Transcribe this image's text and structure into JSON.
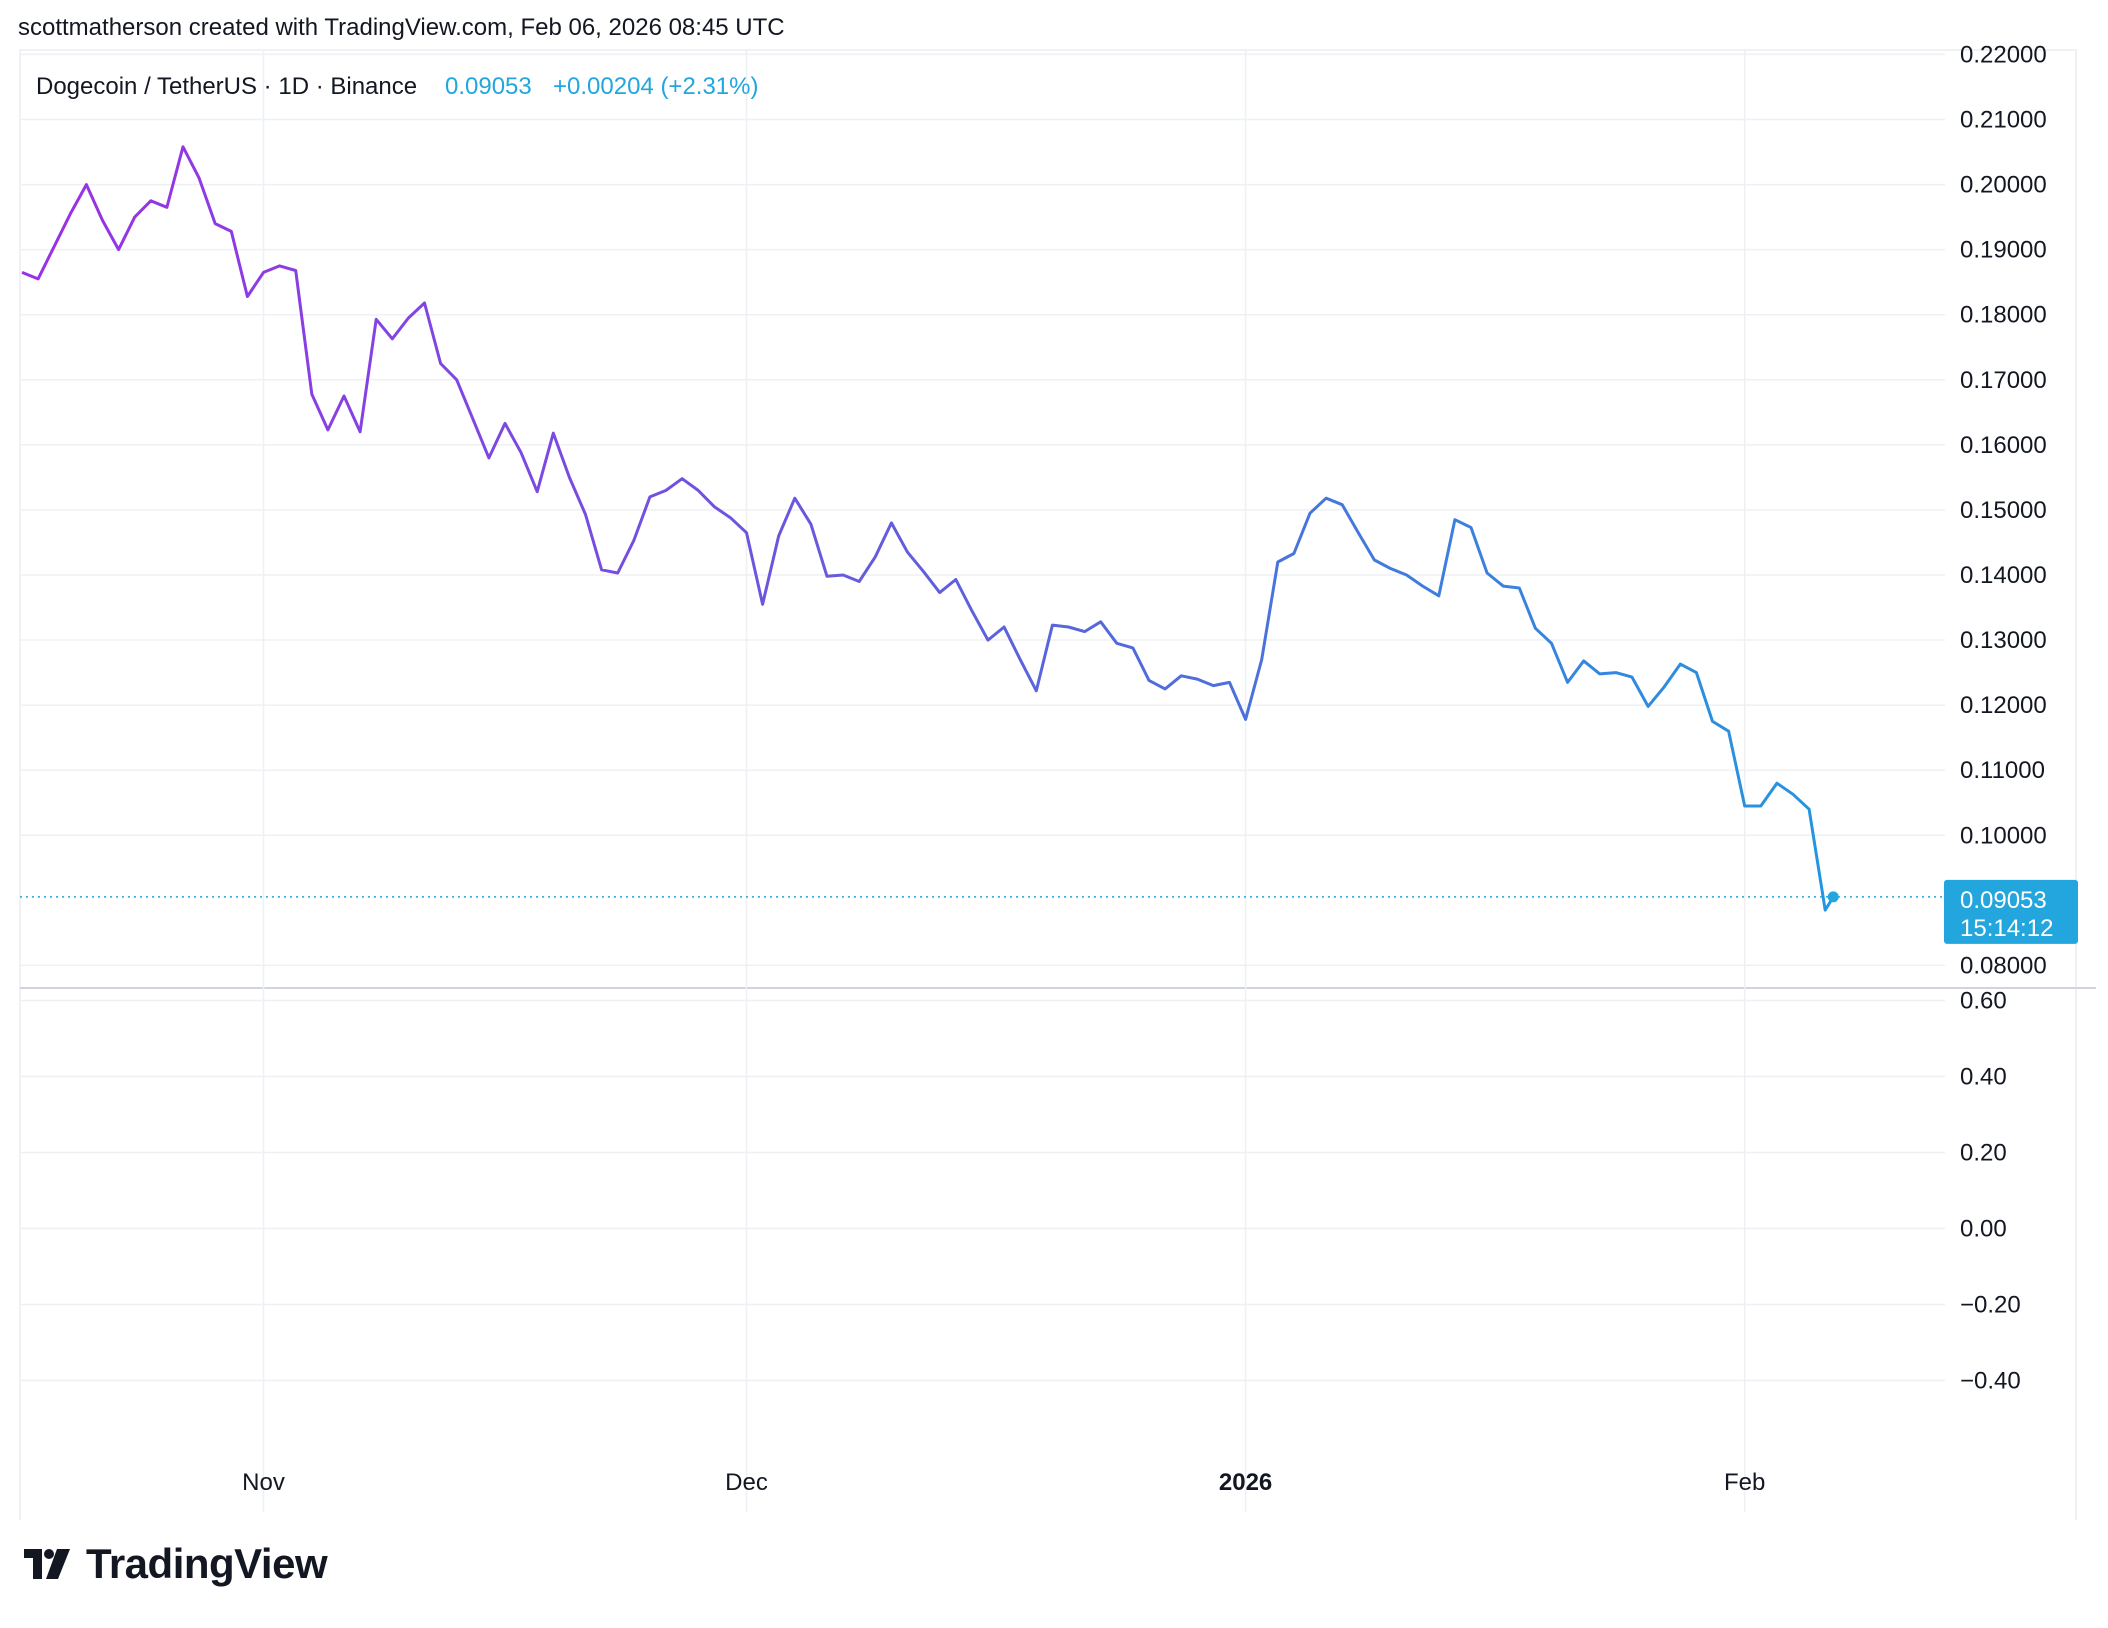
{
  "caption": "scottmatherson created with TradingView.com, Feb 06, 2026 08:45 UTC",
  "logo_text": "TradingView",
  "header": {
    "symbol": "Dogecoin / TetherUS · 1D · Binance",
    "last": "0.09053",
    "change": "+0.00204 (+2.31%)"
  },
  "price_label": {
    "value": "0.09053",
    "countdown": "15:14:12"
  },
  "colors": {
    "line_start": "#9b30e6",
    "line_mid": "#5b63db",
    "line_end": "#2396e0",
    "accent": "#22a6dd",
    "text": "#131722",
    "grid": "#eef0f3"
  },
  "chart_data": [
    {
      "type": "line",
      "title": "Dogecoin / TetherUS · 1D · Binance",
      "x_start": "2025-10-17",
      "x_end": "2026-02-06",
      "y_range": [
        0.077,
        0.2225
      ],
      "y_ticks": [
        "0.22000",
        "0.21000",
        "0.20000",
        "0.19000",
        "0.18000",
        "0.17000",
        "0.16000",
        "0.15000",
        "0.14000",
        "0.13000",
        "0.12000",
        "0.11000",
        "0.10000",
        "0.08000"
      ],
      "x_ticks": [
        {
          "label": "Nov",
          "date": "2025-11-01"
        },
        {
          "label": "Dec",
          "date": "2025-12-01"
        },
        {
          "label": "2026",
          "date": "2026-01-01",
          "bold": true
        },
        {
          "label": "Feb",
          "date": "2026-02-01"
        }
      ],
      "grid": true,
      "series": [
        {
          "name": "Dogecoin / TetherUS",
          "points": [
            [
              "2025-10-17",
              0.1865
            ],
            [
              "2025-10-18",
              0.1855
            ],
            [
              "2025-10-19",
              0.1905
            ],
            [
              "2025-10-20",
              0.1955
            ],
            [
              "2025-10-21",
              0.2
            ],
            [
              "2025-10-22",
              0.1945
            ],
            [
              "2025-10-23",
              0.19
            ],
            [
              "2025-10-24",
              0.195
            ],
            [
              "2025-10-25",
              0.1975
            ],
            [
              "2025-10-26",
              0.1965
            ],
            [
              "2025-10-27",
              0.2058
            ],
            [
              "2025-10-28",
              0.201
            ],
            [
              "2025-10-29",
              0.194
            ],
            [
              "2025-10-30",
              0.1928
            ],
            [
              "2025-10-31",
              0.1828
            ],
            [
              "2025-11-01",
              0.1865
            ],
            [
              "2025-11-02",
              0.1875
            ],
            [
              "2025-11-03",
              0.1868
            ],
            [
              "2025-11-04",
              0.1678
            ],
            [
              "2025-11-05",
              0.1623
            ],
            [
              "2025-11-06",
              0.1675
            ],
            [
              "2025-11-07",
              0.162
            ],
            [
              "2025-11-08",
              0.1793
            ],
            [
              "2025-11-09",
              0.1763
            ],
            [
              "2025-11-10",
              0.1795
            ],
            [
              "2025-11-11",
              0.1818
            ],
            [
              "2025-11-12",
              0.1725
            ],
            [
              "2025-11-13",
              0.17
            ],
            [
              "2025-11-14",
              0.164
            ],
            [
              "2025-11-15",
              0.158
            ],
            [
              "2025-11-16",
              0.1633
            ],
            [
              "2025-11-17",
              0.1588
            ],
            [
              "2025-11-18",
              0.1528
            ],
            [
              "2025-11-19",
              0.1618
            ],
            [
              "2025-11-20",
              0.155
            ],
            [
              "2025-11-21",
              0.1493
            ],
            [
              "2025-11-22",
              0.1408
            ],
            [
              "2025-11-23",
              0.1403
            ],
            [
              "2025-11-24",
              0.1453
            ],
            [
              "2025-11-25",
              0.152
            ],
            [
              "2025-11-26",
              0.153
            ],
            [
              "2025-11-27",
              0.1548
            ],
            [
              "2025-11-28",
              0.153
            ],
            [
              "2025-11-29",
              0.1505
            ],
            [
              "2025-11-30",
              0.1488
            ],
            [
              "2025-12-01",
              0.1465
            ],
            [
              "2025-12-02",
              0.1355
            ],
            [
              "2025-12-03",
              0.146
            ],
            [
              "2025-12-04",
              0.1518
            ],
            [
              "2025-12-05",
              0.1478
            ],
            [
              "2025-12-06",
              0.1398
            ],
            [
              "2025-12-07",
              0.14
            ],
            [
              "2025-12-08",
              0.139
            ],
            [
              "2025-12-09",
              0.1428
            ],
            [
              "2025-12-10",
              0.148
            ],
            [
              "2025-12-11",
              0.1435
            ],
            [
              "2025-12-12",
              0.1405
            ],
            [
              "2025-12-13",
              0.1373
            ],
            [
              "2025-12-14",
              0.1393
            ],
            [
              "2025-12-15",
              0.1345
            ],
            [
              "2025-12-16",
              0.13
            ],
            [
              "2025-12-17",
              0.132
            ],
            [
              "2025-12-18",
              0.127
            ],
            [
              "2025-12-19",
              0.1222
            ],
            [
              "2025-12-20",
              0.1323
            ],
            [
              "2025-12-21",
              0.132
            ],
            [
              "2025-12-22",
              0.1313
            ],
            [
              "2025-12-23",
              0.1328
            ],
            [
              "2025-12-24",
              0.1295
            ],
            [
              "2025-12-25",
              0.1288
            ],
            [
              "2025-12-26",
              0.1238
            ],
            [
              "2025-12-27",
              0.1225
            ],
            [
              "2025-12-28",
              0.1245
            ],
            [
              "2025-12-29",
              0.124
            ],
            [
              "2025-12-30",
              0.123
            ],
            [
              "2025-12-31",
              0.1235
            ],
            [
              "2026-01-01",
              0.1178
            ],
            [
              "2026-01-02",
              0.127
            ],
            [
              "2026-01-03",
              0.142
            ],
            [
              "2026-01-04",
              0.1433
            ],
            [
              "2026-01-05",
              0.1495
            ],
            [
              "2026-01-06",
              0.1518
            ],
            [
              "2026-01-07",
              0.1508
            ],
            [
              "2026-01-08",
              0.1465
            ],
            [
              "2026-01-09",
              0.1423
            ],
            [
              "2026-01-10",
              0.141
            ],
            [
              "2026-01-11",
              0.14
            ],
            [
              "2026-01-12",
              0.1383
            ],
            [
              "2026-01-13",
              0.1368
            ],
            [
              "2026-01-14",
              0.1485
            ],
            [
              "2026-01-15",
              0.1473
            ],
            [
              "2026-01-16",
              0.1403
            ],
            [
              "2026-01-17",
              0.1383
            ],
            [
              "2026-01-18",
              0.138
            ],
            [
              "2026-01-19",
              0.1318
            ],
            [
              "2026-01-20",
              0.1295
            ],
            [
              "2026-01-21",
              0.1235
            ],
            [
              "2026-01-22",
              0.1268
            ],
            [
              "2026-01-23",
              0.1248
            ],
            [
              "2026-01-24",
              0.125
            ],
            [
              "2026-01-25",
              0.1243
            ],
            [
              "2026-01-26",
              0.1198
            ],
            [
              "2026-01-27",
              0.1228
            ],
            [
              "2026-01-28",
              0.1263
            ],
            [
              "2026-01-29",
              0.125
            ],
            [
              "2026-01-30",
              0.1175
            ],
            [
              "2026-01-31",
              0.116
            ],
            [
              "2026-02-01",
              0.1045
            ],
            [
              "2026-02-02",
              0.1045
            ],
            [
              "2026-02-03",
              0.108
            ],
            [
              "2026-02-04",
              0.1063
            ],
            [
              "2026-02-05",
              0.104
            ],
            [
              "2026-02-06",
              0.0885
            ],
            [
              "2026-02-06T12:00",
              0.09053
            ]
          ]
        }
      ],
      "last_value": 0.09053,
      "last_value_label": "0.09053"
    },
    {
      "type": "line",
      "title": "",
      "y_range": [
        -0.5,
        0.6
      ],
      "y_ticks": [
        "0.60",
        "0.40",
        "0.20",
        "0.00",
        "−0.20",
        "−0.40"
      ],
      "grid": true,
      "series": []
    }
  ]
}
